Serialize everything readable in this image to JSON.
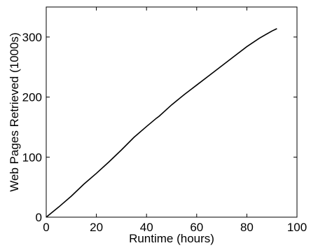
{
  "chart_data": {
    "type": "line",
    "title": "",
    "xlabel": "Runtime (hours)",
    "ylabel": "Web Pages Retrieved (1000s)",
    "xlim": [
      0,
      100
    ],
    "ylim": [
      0,
      350
    ],
    "xticks": [
      0,
      20,
      40,
      60,
      80,
      100
    ],
    "yticks": [
      0,
      100,
      200,
      300
    ],
    "grid": false,
    "legend": "none",
    "colors": {
      "line": "#000000",
      "axis": "#000000",
      "background": "#ffffff"
    },
    "series": [
      {
        "x": [
          0,
          5,
          10,
          15,
          20,
          25,
          30,
          35,
          40,
          44,
          45,
          50,
          55,
          60,
          65,
          70,
          75,
          80,
          85,
          90,
          92
        ],
        "y": [
          0,
          17,
          35,
          55,
          73,
          92,
          112,
          133,
          151,
          165,
          168,
          187,
          204,
          220,
          236,
          252,
          268,
          284,
          298,
          310,
          314
        ]
      }
    ]
  }
}
